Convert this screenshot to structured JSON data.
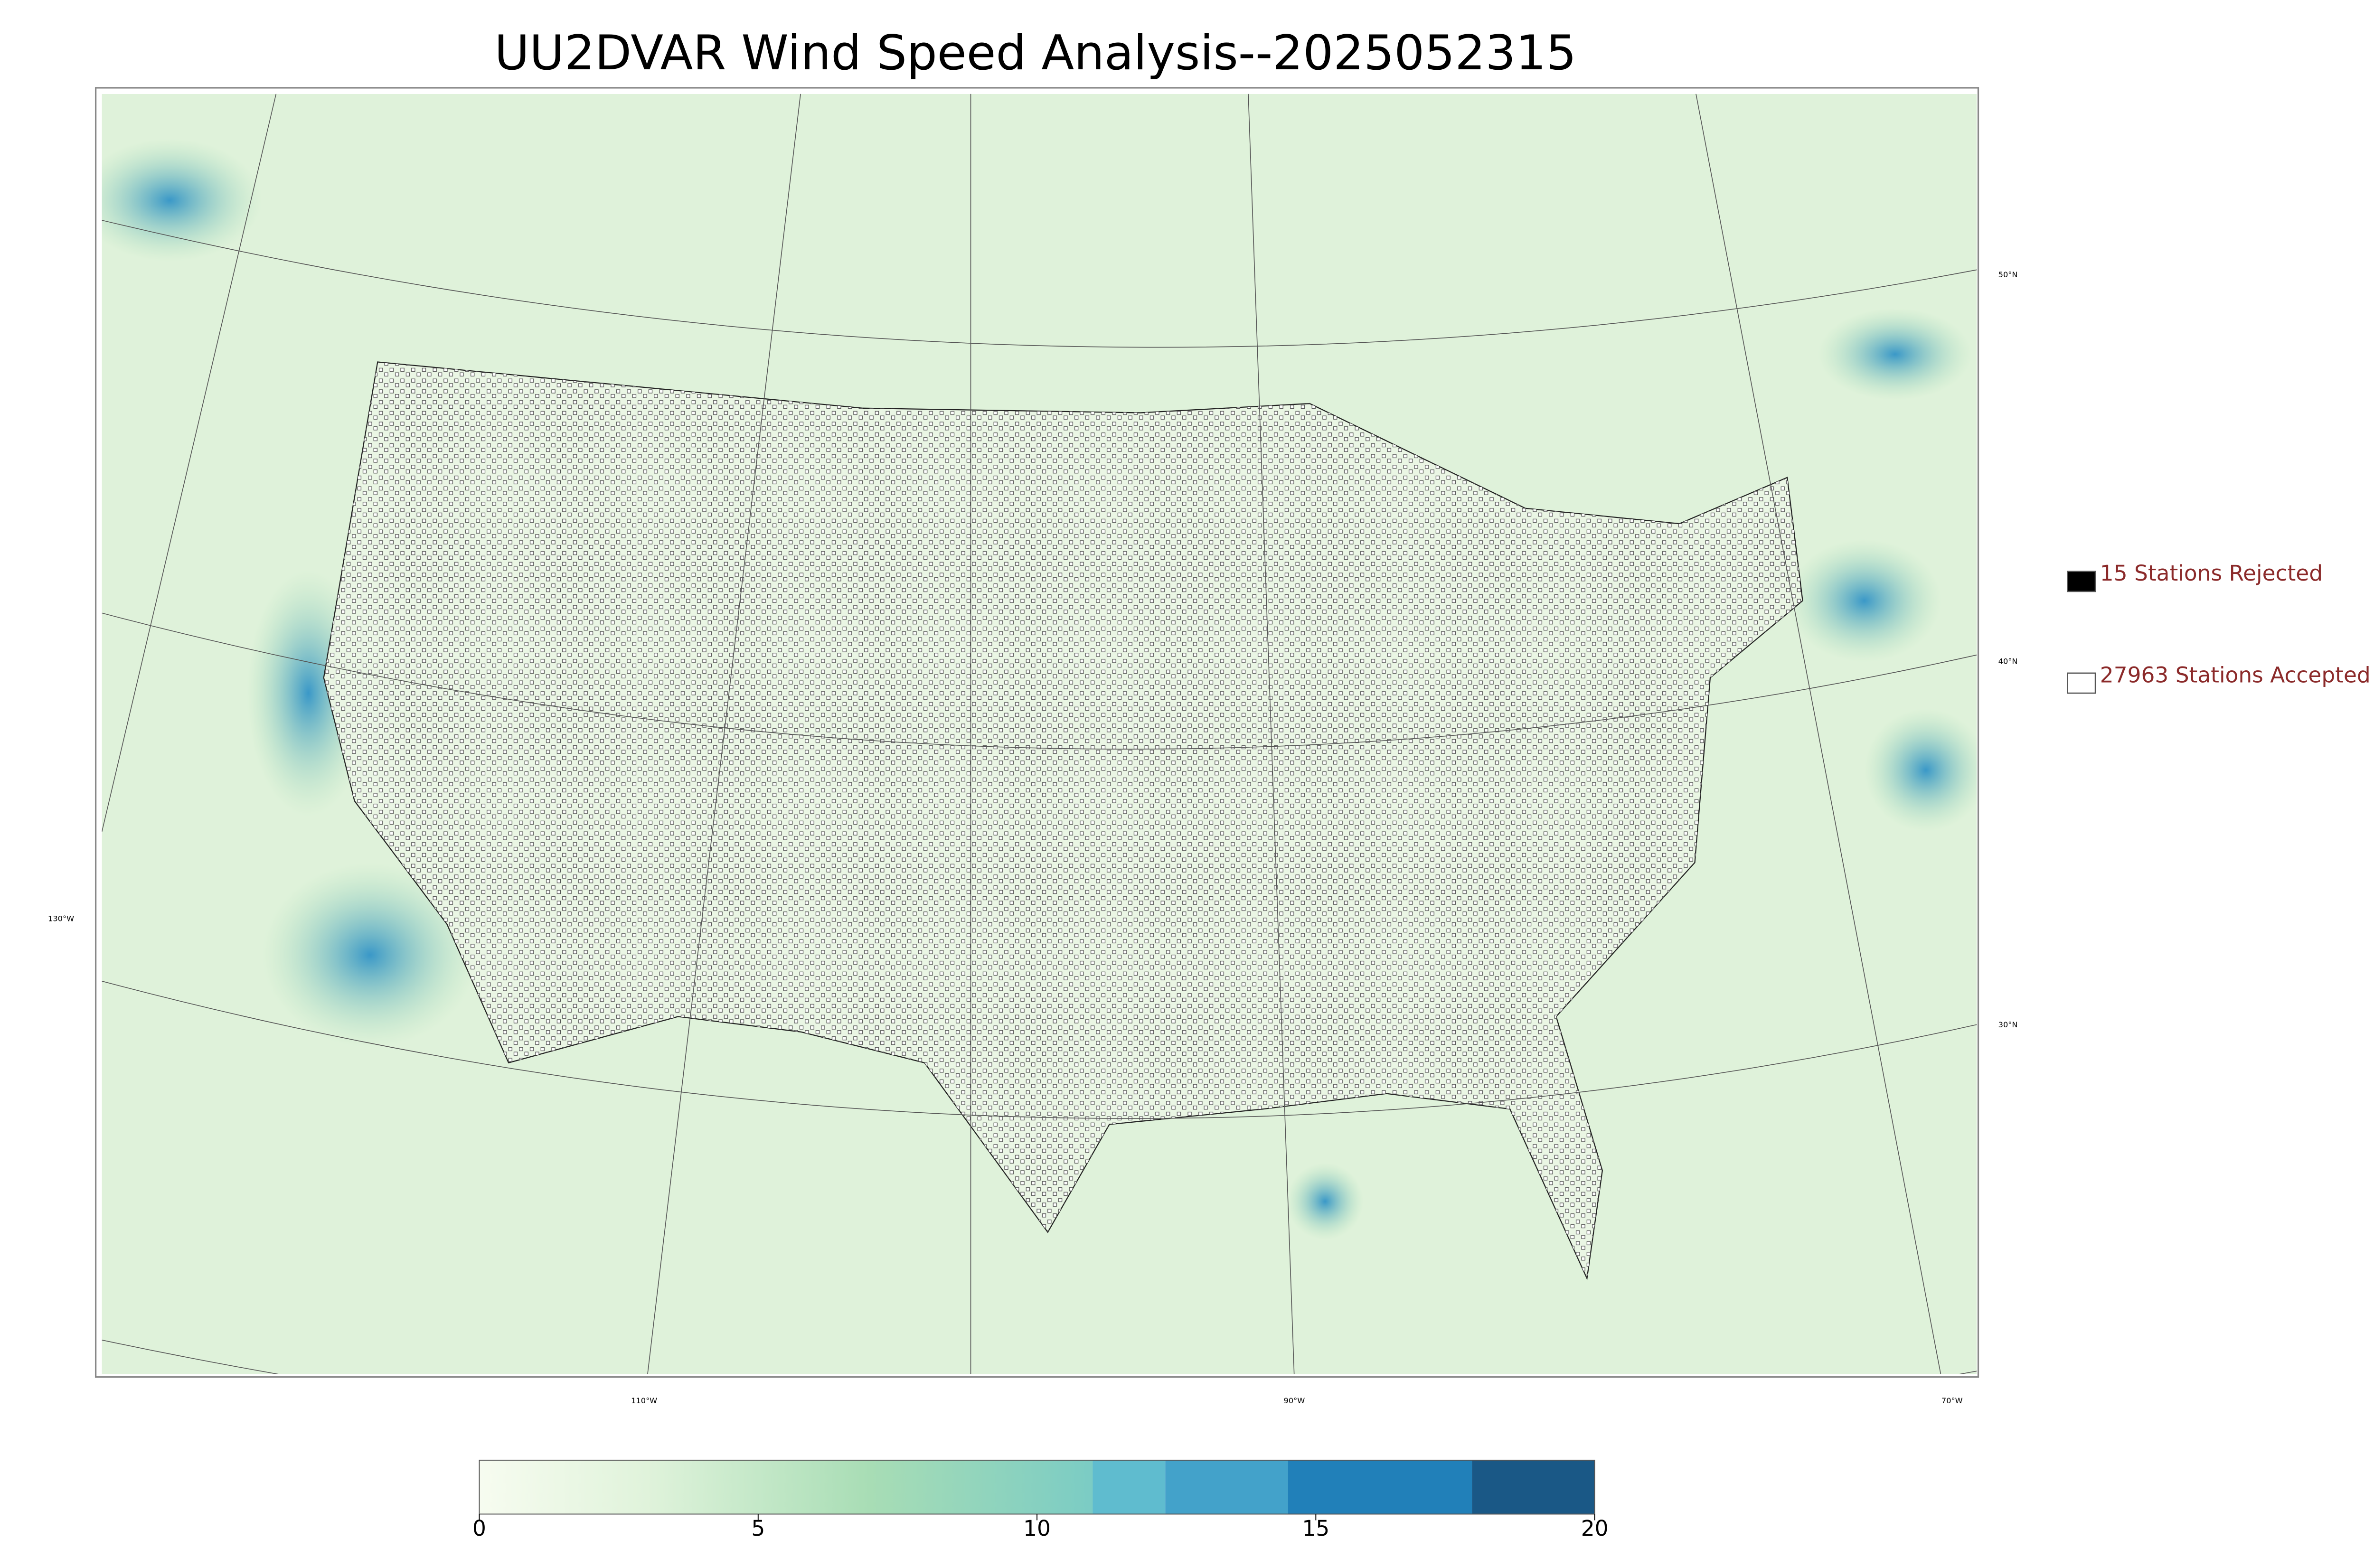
{
  "title": "UU2DVAR Wind Speed Analysis--2025052315",
  "legend": [
    {
      "label": "15 Stations Rejected",
      "fill": "#000000"
    },
    {
      "label": "27963 Stations Accepted",
      "fill": "#ffffff"
    }
  ],
  "graticule": {
    "lat_labels": [
      "50°N",
      "40°N",
      "30°N"
    ],
    "lon_labels": [
      "130°W",
      "110°W",
      "90°W",
      "70°W"
    ]
  },
  "colorbar": {
    "lim": [
      0,
      20
    ],
    "ticks": [
      0,
      5,
      10,
      15,
      20
    ],
    "gradient_stops": [
      {
        "value": 0,
        "color": "#f7fcf0"
      },
      {
        "value": 3,
        "color": "#e0f3db"
      },
      {
        "value": 7,
        "color": "#a8ddb5"
      },
      {
        "value": 11,
        "color": "#7bccc4"
      }
    ],
    "blocks": [
      {
        "from": 11,
        "to": 12.3,
        "color": "#5fbccf"
      },
      {
        "from": 12.3,
        "to": 14.5,
        "color": "#43a2ca"
      },
      {
        "from": 14.5,
        "to": 17.8,
        "color": "#2180b9"
      },
      {
        "from": 17.8,
        "to": 20,
        "color": "#1a5886"
      }
    ]
  }
}
